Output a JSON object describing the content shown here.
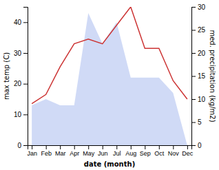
{
  "chart_data": {
    "type": "area",
    "categories": [
      "Jan",
      "Feb",
      "Mar",
      "Apr",
      "May",
      "Jun",
      "Jul",
      "Aug",
      "Sep",
      "Oct",
      "Nov",
      "Dec"
    ],
    "series": [
      {
        "type": "area",
        "color": "#aabbee",
        "values": [
          13,
          15,
          13,
          13,
          43,
          33,
          40,
          22,
          22,
          22,
          17,
          0
        ]
      },
      {
        "type": "line",
        "axis": "y2",
        "color": "#cc3333",
        "values": [
          9,
          11,
          17,
          22,
          23,
          22,
          26,
          30,
          21,
          21,
          14,
          10
        ]
      }
    ],
    "xlabel": "date (month)",
    "ylabel": "max temp (C)",
    "y2label": "med. precipitation (kg/m2)",
    "ylim": [
      0,
      45
    ],
    "yticks": [
      0,
      10,
      20,
      30,
      40
    ],
    "y2lim": [
      0,
      30
    ],
    "y2ticks": [
      0,
      5,
      10,
      15,
      20,
      25,
      30
    ],
    "grid": false
  }
}
